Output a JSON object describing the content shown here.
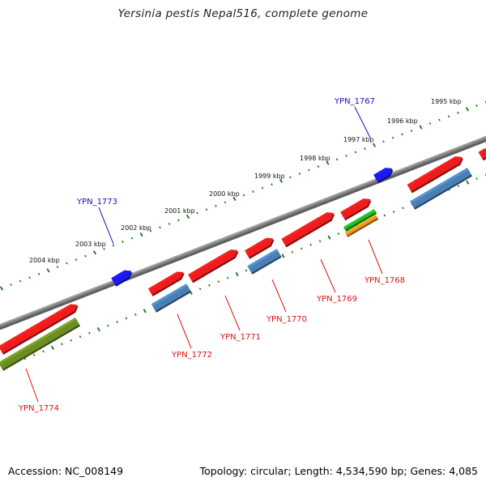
{
  "title": "Yersinia pestis Nepal516, complete genome",
  "footer": {
    "accession": "Accession: NC_008149",
    "stats": "Topology: circular; Length: 4,534,590 bp; Genes: 4,085"
  },
  "colors": {
    "forward_gene": "#ee1c1c",
    "reverse_cds": "#4a7fb5",
    "reverse_other": "#6b8e23",
    "rrna_green": "#22bb22",
    "rrna_orange": "#f29a1a",
    "blue_feature": "#1a1aee",
    "backbone": "#808080",
    "tick": "#117711",
    "label_red": "#dd1111",
    "label_blue": "#1111bb"
  },
  "kbp_ticks": [
    {
      "label": "2004 kbp"
    },
    {
      "label": "2003 kbp"
    },
    {
      "label": "2002 kbp"
    },
    {
      "label": "2001 kbp"
    },
    {
      "label": "2000 kbp"
    },
    {
      "label": "1999 kbp"
    },
    {
      "label": "1998 kbp"
    },
    {
      "label": "1997 kbp"
    },
    {
      "label": "1996 kbp"
    },
    {
      "label": "1995 kbp"
    }
  ],
  "gene_labels": [
    {
      "name": "YPN_1767",
      "strand": "top"
    },
    {
      "name": "YPN_1773",
      "strand": "top"
    },
    {
      "name": "YPN_1768",
      "strand": "bottom"
    },
    {
      "name": "YPN_1769",
      "strand": "bottom"
    },
    {
      "name": "YPN_1770",
      "strand": "bottom"
    },
    {
      "name": "YPN_1771",
      "strand": "bottom"
    },
    {
      "name": "YPN_1772",
      "strand": "bottom"
    },
    {
      "name": "YPN_1774",
      "strand": "bottom"
    }
  ]
}
